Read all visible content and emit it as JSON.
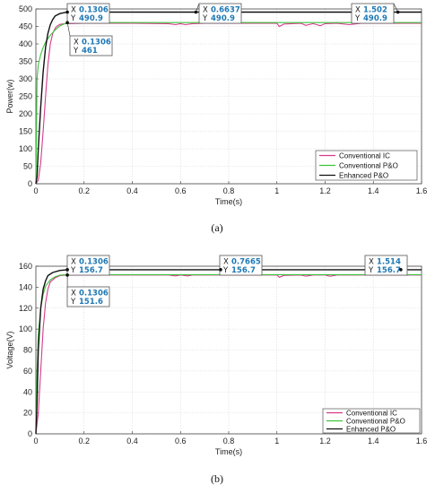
{
  "chart_data": [
    {
      "type": "line",
      "caption": "(a)",
      "xlabel": "Time(s)",
      "ylabel": "Power(w)",
      "xlim": [
        0,
        1.6
      ],
      "ylim": [
        0,
        500
      ],
      "xticks": [
        "0",
        "0.2",
        "0.4",
        "0.6",
        "0.8",
        "1",
        "1.2",
        "1.4",
        "1.6"
      ],
      "yticks": [
        "0",
        "50",
        "100",
        "150",
        "200",
        "250",
        "300",
        "350",
        "400",
        "450",
        "500"
      ],
      "grid": true,
      "legend_position": "bottom-right",
      "series": [
        {
          "name": "Conventional  IC",
          "color": "#d63a8a",
          "points": [
            [
              0,
              0
            ],
            [
              0.01,
              10
            ],
            [
              0.02,
              60
            ],
            [
              0.03,
              150
            ],
            [
              0.04,
              250
            ],
            [
              0.05,
              340
            ],
            [
              0.06,
              400
            ],
            [
              0.07,
              430
            ],
            [
              0.08,
              445
            ],
            [
              0.09,
              452
            ],
            [
              0.1,
              456
            ],
            [
              0.12,
              458
            ],
            [
              0.2,
              459
            ],
            [
              0.4,
              459
            ],
            [
              0.55,
              458
            ],
            [
              0.58,
              455
            ],
            [
              0.6,
              458
            ],
            [
              0.62,
              455
            ],
            [
              0.65,
              458
            ],
            [
              0.7,
              459
            ],
            [
              0.8,
              459
            ],
            [
              1.0,
              459
            ],
            [
              1.01,
              450
            ],
            [
              1.03,
              457
            ],
            [
              1.1,
              459
            ],
            [
              1.12,
              453
            ],
            [
              1.15,
              458
            ],
            [
              1.18,
              452
            ],
            [
              1.2,
              458
            ],
            [
              1.25,
              459
            ],
            [
              1.3,
              455
            ],
            [
              1.35,
              459
            ],
            [
              1.6,
              459
            ]
          ]
        },
        {
          "name": "Conventional  P&O",
          "color": "#3cc43c",
          "points": [
            [
              0,
              0
            ],
            [
              0.005,
              300
            ],
            [
              0.01,
              340
            ],
            [
              0.02,
              370
            ],
            [
              0.03,
              390
            ],
            [
              0.04,
              405
            ],
            [
              0.06,
              425
            ],
            [
              0.08,
              440
            ],
            [
              0.1,
              452
            ],
            [
              0.1306,
              461
            ],
            [
              0.2,
              461
            ],
            [
              0.4,
              461
            ],
            [
              0.6,
              461
            ],
            [
              0.8,
              461
            ],
            [
              1.0,
              461
            ],
            [
              1.2,
              461
            ],
            [
              1.4,
              461
            ],
            [
              1.6,
              461
            ]
          ]
        },
        {
          "name": "Enhanced P&O",
          "color": "#111111",
          "points": [
            [
              0,
              0
            ],
            [
              0.005,
              20
            ],
            [
              0.01,
              100
            ],
            [
              0.02,
              220
            ],
            [
              0.03,
              320
            ],
            [
              0.04,
              390
            ],
            [
              0.05,
              430
            ],
            [
              0.06,
              455
            ],
            [
              0.07,
              470
            ],
            [
              0.08,
              480
            ],
            [
              0.1,
              487
            ],
            [
              0.1306,
              490.9
            ],
            [
              0.3,
              490.9
            ],
            [
              0.6637,
              490.9
            ],
            [
              1.0,
              490.9
            ],
            [
              1.502,
              490.9
            ],
            [
              1.6,
              490.9
            ]
          ]
        }
      ],
      "datatips": [
        {
          "x_label": "X",
          "x": "0.1306",
          "y_label": "Y",
          "y": "490.9",
          "at": [
            0.1306,
            490.9
          ]
        },
        {
          "x_label": "X",
          "x": "0.1306",
          "y_label": "Y",
          "y": "461",
          "at": [
            0.1306,
            461
          ]
        },
        {
          "x_label": "X",
          "x": "0.6637",
          "y_label": "Y",
          "y": "490.9",
          "at": [
            0.6637,
            490.9
          ]
        },
        {
          "x_label": "X",
          "x": "1.502",
          "y_label": "Y",
          "y": "490.9",
          "at": [
            1.502,
            490.9
          ]
        }
      ]
    },
    {
      "type": "line",
      "caption": "(b)",
      "xlabel": "Time(s)",
      "ylabel": "Voltage(V)",
      "xlim": [
        0,
        1.6
      ],
      "ylim": [
        0,
        160
      ],
      "xticks": [
        "0",
        "0.2",
        "0.4",
        "0.6",
        "0.8",
        "1",
        "1.2",
        "1.4",
        "1.6"
      ],
      "yticks": [
        "0",
        "20",
        "40",
        "60",
        "80",
        "100",
        "120",
        "140",
        "160"
      ],
      "grid": true,
      "legend_position": "bottom-right",
      "series": [
        {
          "name": "Conventional  IC",
          "color": "#d63a8a",
          "points": [
            [
              0,
              0
            ],
            [
              0.01,
              20
            ],
            [
              0.02,
              60
            ],
            [
              0.03,
              100
            ],
            [
              0.04,
              125
            ],
            [
              0.05,
              138
            ],
            [
              0.06,
              145
            ],
            [
              0.08,
              149
            ],
            [
              0.1,
              151
            ],
            [
              0.1306,
              151.6
            ],
            [
              0.2,
              151.6
            ],
            [
              0.55,
              151.6
            ],
            [
              0.58,
              150.8
            ],
            [
              0.6,
              151.6
            ],
            [
              0.63,
              150.8
            ],
            [
              0.65,
              151.6
            ],
            [
              1.0,
              151.6
            ],
            [
              1.01,
              149.5
            ],
            [
              1.03,
              151.3
            ],
            [
              1.1,
              151.6
            ],
            [
              1.12,
              150.5
            ],
            [
              1.15,
              151.6
            ],
            [
              1.2,
              151.6
            ],
            [
              1.22,
              150.4
            ],
            [
              1.25,
              151.6
            ],
            [
              1.6,
              151.6
            ]
          ]
        },
        {
          "name": "Conventional  P&O",
          "color": "#3cc43c",
          "points": [
            [
              0,
              0
            ],
            [
              0.005,
              60
            ],
            [
              0.01,
              95
            ],
            [
              0.02,
              120
            ],
            [
              0.03,
              133
            ],
            [
              0.04,
              141
            ],
            [
              0.06,
              147
            ],
            [
              0.08,
              150
            ],
            [
              0.1,
              151.5
            ],
            [
              0.13,
              152
            ],
            [
              0.3,
              152
            ],
            [
              0.6,
              152
            ],
            [
              1.0,
              152
            ],
            [
              1.6,
              152
            ]
          ]
        },
        {
          "name": "Enhanced P&O",
          "color": "#111111",
          "points": [
            [
              0,
              0
            ],
            [
              0.005,
              30
            ],
            [
              0.01,
              80
            ],
            [
              0.02,
              120
            ],
            [
              0.03,
              138
            ],
            [
              0.04,
              146
            ],
            [
              0.05,
              151
            ],
            [
              0.07,
              154
            ],
            [
              0.1,
              156
            ],
            [
              0.1306,
              156.7
            ],
            [
              0.3,
              156.7
            ],
            [
              0.7665,
              156.7
            ],
            [
              1.0,
              156.7
            ],
            [
              1.514,
              156.7
            ],
            [
              1.6,
              156.7
            ]
          ]
        }
      ],
      "datatips": [
        {
          "x_label": "X",
          "x": "0.1306",
          "y_label": "Y",
          "y": "156.7",
          "at": [
            0.1306,
            156.7
          ]
        },
        {
          "x_label": "X",
          "x": "0.1306",
          "y_label": "Y",
          "y": "151.6",
          "at": [
            0.1306,
            151.6
          ]
        },
        {
          "x_label": "X",
          "x": "0.7665",
          "y_label": "Y",
          "y": "156.7",
          "at": [
            0.7665,
            156.7
          ]
        },
        {
          "x_label": "X",
          "x": "1.514",
          "y_label": "Y",
          "y": "156.7",
          "at": [
            1.514,
            156.7
          ]
        }
      ]
    }
  ]
}
